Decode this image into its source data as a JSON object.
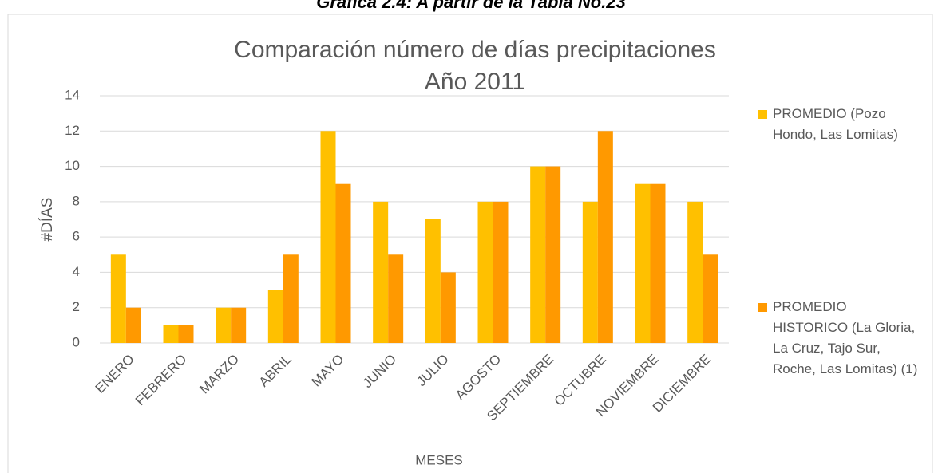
{
  "caption": "Gráfica 2.4: A partir de la Tabla No.23",
  "chart_data": {
    "type": "bar",
    "title": [
      "Comparación número de días precipitaciones",
      "Año 2011"
    ],
    "x_label": "MESES",
    "y_label": "#DÍAS",
    "categories": [
      "ENERO",
      "FEBRERO",
      "MARZO",
      "ABRIL",
      "MAYO",
      "JUNIO",
      "JULIO",
      "AGOSTO",
      "SEPTIEMBRE",
      "OCTUBRE",
      "NOVIEMBRE",
      "DICIEMBRE"
    ],
    "series": [
      {
        "name": "PROMEDIO (Pozo Hondo, Las Lomitas)",
        "color": "#ffc000",
        "values": [
          5,
          1,
          2,
          3,
          12,
          8,
          7,
          8,
          10,
          8,
          9,
          8
        ]
      },
      {
        "name": "PROMEDIO HISTORICO (La Gloria, La Cruz, Tajo Sur, Roche, Las Lomitas) (1)",
        "color": "#ff9900",
        "values": [
          2,
          1,
          2,
          5,
          9,
          5,
          4,
          8,
          10,
          12,
          9,
          5
        ]
      }
    ],
    "ylim": [
      0,
      14
    ],
    "yticks": [
      0,
      2,
      4,
      6,
      8,
      10,
      12,
      14
    ],
    "grid": true,
    "legend": "right"
  }
}
